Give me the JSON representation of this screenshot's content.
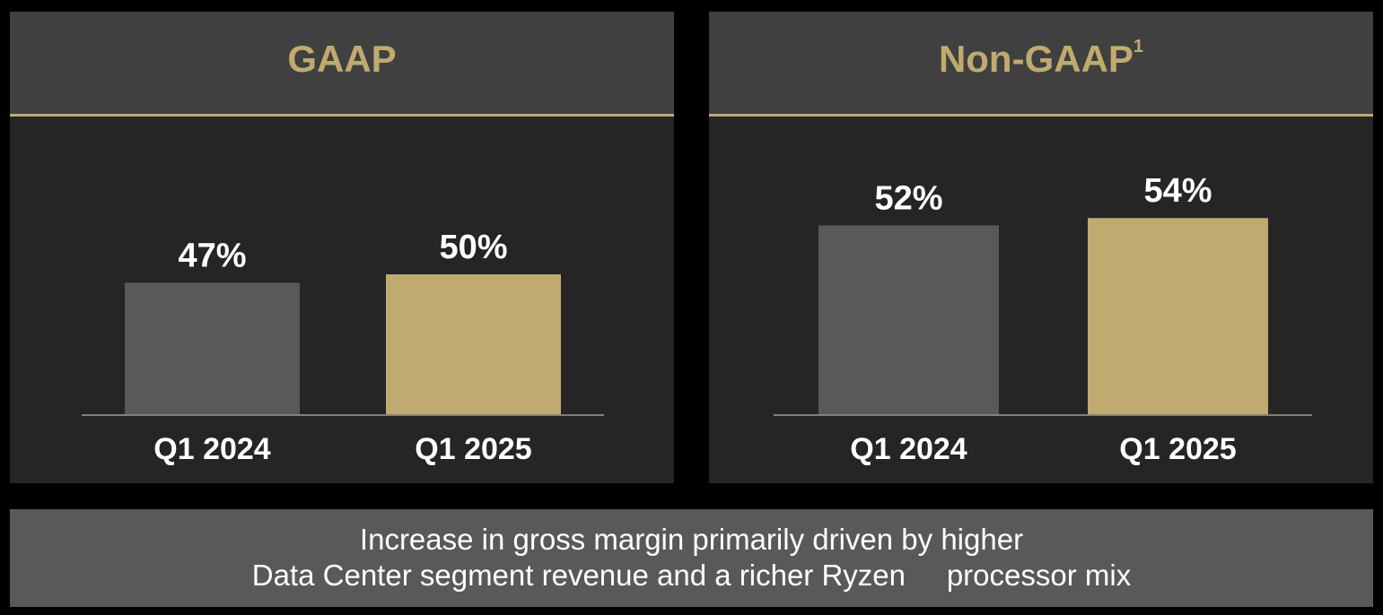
{
  "colors": {
    "background": "#000000",
    "panel_bg": "#252525",
    "header_bg": "#404040",
    "accent_gold": "#c0aa6f",
    "bar_prior": "#595959",
    "bar_current": "#c0aa6f",
    "axis_line": "#808080",
    "text_white": "#ffffff",
    "footnote_bg": "#595959"
  },
  "panels": [
    {
      "title": "GAAP",
      "superscript": ""
    },
    {
      "title": "Non-GAAP",
      "superscript": "1"
    }
  ],
  "chart_data": [
    {
      "type": "bar",
      "title": "GAAP",
      "categories": [
        "Q1 2024",
        "Q1 2025"
      ],
      "values": [
        47,
        50
      ],
      "value_labels": [
        "47%",
        "50%"
      ],
      "ylim": [
        0,
        100
      ],
      "grid": false,
      "legend": "none"
    },
    {
      "type": "bar",
      "title": "Non-GAAP",
      "categories": [
        "Q1 2024",
        "Q1 2025"
      ],
      "values": [
        52,
        54
      ],
      "value_labels": [
        "52%",
        "54%"
      ],
      "ylim": [
        0,
        100
      ],
      "grid": false,
      "legend": "none"
    }
  ],
  "footnote": {
    "line1": "Increase in gross margin primarily driven by higher",
    "line2": "Data Center segment revenue and a richer Ryzen     processor mix"
  }
}
